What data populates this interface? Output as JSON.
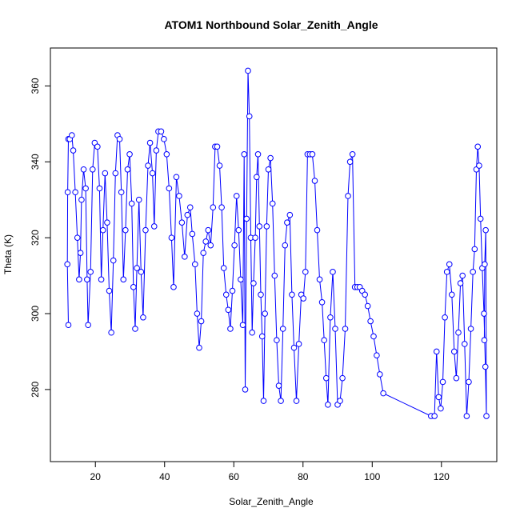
{
  "chart_data": {
    "type": "line",
    "title": "ATOM1 Northbound Solar_Zenith_Angle",
    "xlabel": "Solar_Zenith_Angle",
    "ylabel": "Theta (K)",
    "xlim": [
      7,
      136
    ],
    "ylim": [
      261,
      370
    ],
    "xticks": [
      20,
      40,
      60,
      80,
      100,
      120
    ],
    "yticks": [
      280,
      300,
      320,
      340,
      360
    ],
    "grid": false,
    "legend": "none",
    "color": "#0000ff",
    "marker": "open-circle",
    "series": [
      {
        "name": "",
        "points": [
          [
            12.2,
            297
          ],
          [
            11.9,
            313
          ],
          [
            12.0,
            332
          ],
          [
            12.2,
            346
          ],
          [
            12.6,
            346
          ],
          [
            13.2,
            347
          ],
          [
            13.6,
            343
          ],
          [
            14.2,
            332
          ],
          [
            14.8,
            320
          ],
          [
            15.3,
            309
          ],
          [
            15.7,
            316
          ],
          [
            16.0,
            330
          ],
          [
            16.6,
            338
          ],
          [
            17.2,
            333
          ],
          [
            17.6,
            309
          ],
          [
            17.9,
            297
          ],
          [
            18.6,
            311
          ],
          [
            19.2,
            338
          ],
          [
            19.8,
            345
          ],
          [
            20.6,
            344
          ],
          [
            21.2,
            333
          ],
          [
            21.7,
            309
          ],
          [
            22.2,
            322
          ],
          [
            22.8,
            337
          ],
          [
            23.4,
            324
          ],
          [
            24.0,
            306
          ],
          [
            24.6,
            295
          ],
          [
            25.2,
            314
          ],
          [
            25.8,
            337
          ],
          [
            26.4,
            347
          ],
          [
            27.0,
            346
          ],
          [
            27.5,
            332
          ],
          [
            28.1,
            309
          ],
          [
            28.7,
            322
          ],
          [
            29.3,
            338
          ],
          [
            29.9,
            342
          ],
          [
            30.5,
            329
          ],
          [
            31.0,
            307
          ],
          [
            31.5,
            296
          ],
          [
            32.0,
            312
          ],
          [
            32.6,
            330
          ],
          [
            33.2,
            311
          ],
          [
            33.8,
            299
          ],
          [
            34.5,
            322
          ],
          [
            35.2,
            339
          ],
          [
            35.8,
            345
          ],
          [
            36.5,
            337
          ],
          [
            37.0,
            323
          ],
          [
            37.6,
            343
          ],
          [
            38.2,
            348
          ],
          [
            39.0,
            348
          ],
          [
            39.8,
            346
          ],
          [
            40.6,
            342
          ],
          [
            41.3,
            333
          ],
          [
            42.0,
            320
          ],
          [
            42.6,
            307
          ],
          [
            43.4,
            336
          ],
          [
            44.2,
            331
          ],
          [
            45.0,
            324
          ],
          [
            45.8,
            315
          ],
          [
            46.6,
            326
          ],
          [
            47.4,
            328
          ],
          [
            48.0,
            321
          ],
          [
            48.8,
            313
          ],
          [
            49.4,
            300
          ],
          [
            50.0,
            291
          ],
          [
            50.6,
            298
          ],
          [
            51.2,
            316
          ],
          [
            51.9,
            319
          ],
          [
            52.6,
            322
          ],
          [
            53.3,
            318
          ],
          [
            54.0,
            328
          ],
          [
            54.6,
            344
          ],
          [
            55.2,
            344
          ],
          [
            55.9,
            339
          ],
          [
            56.5,
            328
          ],
          [
            57.1,
            312
          ],
          [
            57.8,
            305
          ],
          [
            58.4,
            301
          ],
          [
            59.0,
            296
          ],
          [
            59.6,
            306
          ],
          [
            60.2,
            318
          ],
          [
            60.8,
            331
          ],
          [
            61.4,
            322
          ],
          [
            62.0,
            309
          ],
          [
            62.6,
            297
          ],
          [
            63.0,
            342
          ],
          [
            63.3,
            280
          ],
          [
            63.7,
            325
          ],
          [
            64.1,
            364
          ],
          [
            64.5,
            352
          ],
          [
            64.9,
            320
          ],
          [
            65.3,
            295
          ],
          [
            65.7,
            308
          ],
          [
            66.2,
            320
          ],
          [
            66.6,
            336
          ],
          [
            67.0,
            342
          ],
          [
            67.4,
            323
          ],
          [
            67.8,
            305
          ],
          [
            68.2,
            294
          ],
          [
            68.6,
            277
          ],
          [
            69.0,
            300
          ],
          [
            69.5,
            323
          ],
          [
            70.0,
            338
          ],
          [
            70.6,
            341
          ],
          [
            71.2,
            329
          ],
          [
            71.8,
            310
          ],
          [
            72.4,
            293
          ],
          [
            73.0,
            281
          ],
          [
            73.6,
            277
          ],
          [
            74.2,
            296
          ],
          [
            74.8,
            318
          ],
          [
            75.4,
            324
          ],
          [
            76.2,
            326
          ],
          [
            76.8,
            305
          ],
          [
            77.4,
            291
          ],
          [
            78.1,
            277
          ],
          [
            78.8,
            292
          ],
          [
            79.5,
            305
          ],
          [
            80.1,
            304
          ],
          [
            80.7,
            311
          ],
          [
            81.3,
            342
          ],
          [
            82.0,
            342
          ],
          [
            82.7,
            342
          ],
          [
            83.4,
            335
          ],
          [
            84.1,
            322
          ],
          [
            84.8,
            309
          ],
          [
            85.5,
            303
          ],
          [
            86.1,
            293
          ],
          [
            86.7,
            283
          ],
          [
            87.2,
            276
          ],
          [
            87.9,
            299
          ],
          [
            88.6,
            311
          ],
          [
            89.3,
            296
          ],
          [
            90.0,
            276
          ],
          [
            90.7,
            277
          ],
          [
            91.4,
            283
          ],
          [
            92.2,
            296
          ],
          [
            93.0,
            331
          ],
          [
            93.6,
            340
          ],
          [
            94.3,
            342
          ],
          [
            95.0,
            307
          ],
          [
            95.7,
            307
          ],
          [
            96.4,
            307
          ],
          [
            97.1,
            306
          ],
          [
            97.9,
            305
          ],
          [
            98.7,
            302
          ],
          [
            99.5,
            298
          ],
          [
            100.4,
            294
          ],
          [
            101.3,
            289
          ],
          [
            102.2,
            284
          ],
          [
            103.2,
            279
          ],
          [
            117.0,
            273
          ],
          [
            118.0,
            273
          ],
          [
            118.6,
            290
          ],
          [
            119.2,
            278
          ],
          [
            119.8,
            275
          ],
          [
            120.4,
            282
          ],
          [
            121.0,
            299
          ],
          [
            121.6,
            311
          ],
          [
            122.3,
            313
          ],
          [
            123.0,
            305
          ],
          [
            123.7,
            290
          ],
          [
            124.3,
            283
          ],
          [
            124.9,
            295
          ],
          [
            125.5,
            308
          ],
          [
            126.1,
            310
          ],
          [
            126.7,
            292
          ],
          [
            127.3,
            273
          ],
          [
            127.9,
            282
          ],
          [
            128.5,
            296
          ],
          [
            129.1,
            311
          ],
          [
            129.6,
            317
          ],
          [
            130.1,
            338
          ],
          [
            130.5,
            344
          ],
          [
            130.9,
            339
          ],
          [
            131.3,
            325
          ],
          [
            131.8,
            312
          ],
          [
            132.3,
            300
          ],
          [
            132.7,
            286
          ],
          [
            133.0,
            273
          ],
          [
            132.8,
            322
          ],
          [
            132.5,
            313
          ],
          [
            132.4,
            293
          ]
        ]
      }
    ]
  }
}
